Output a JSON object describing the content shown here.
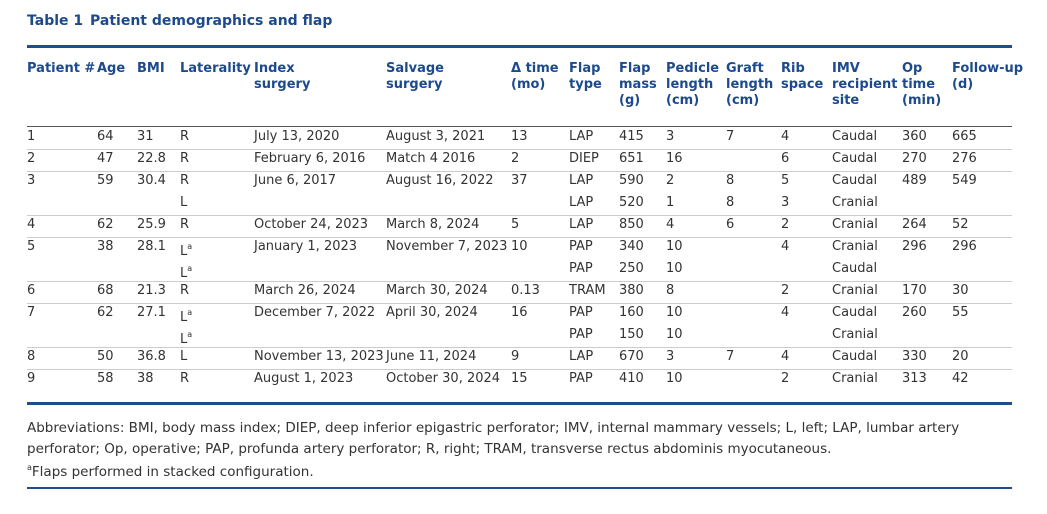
{
  "header": {
    "label": "Table 1",
    "title": "Patient demographics and flap"
  },
  "table": {
    "columns": [
      [
        "Patient #"
      ],
      [
        "Age"
      ],
      [
        "BMI"
      ],
      [
        "Laterality"
      ],
      [
        "Index",
        "surgery"
      ],
      [
        "Salvage",
        "surgery"
      ],
      [
        "Δ time",
        "(mo)"
      ],
      [
        "Flap",
        "type"
      ],
      [
        "Flap",
        "mass",
        "(g)"
      ],
      [
        "Pedicle",
        "length",
        "(cm)"
      ],
      [
        "Graft",
        "length",
        "(cm)"
      ],
      [
        "Rib",
        "space"
      ],
      [
        "IMV",
        "recipient",
        "site"
      ],
      [
        "Op",
        "time",
        "(min)"
      ],
      [
        "Follow-up",
        "(d)"
      ]
    ],
    "rows": [
      [
        "1",
        "64",
        "31",
        "R",
        "July 13, 2020",
        "August 3, 2021",
        "13",
        "LAP",
        "415",
        "3",
        "7",
        "4",
        "Caudal",
        "360",
        "665"
      ],
      [
        "2",
        "47",
        "22.8",
        "R",
        "February 6, 2016",
        "Match 4 2016",
        "2",
        "DIEP",
        "651",
        "16",
        null,
        "6",
        "Caudal",
        "270",
        "276"
      ],
      [
        "3",
        "59",
        "30.4",
        "R",
        "June 6, 2017",
        "August 16, 2022",
        "37",
        "LAP",
        "590",
        "2",
        "8",
        "5",
        "Caudal",
        "489",
        "549"
      ],
      [
        null,
        null,
        null,
        "L",
        null,
        null,
        null,
        "LAP",
        "520",
        "1",
        "8",
        "3",
        "Cranial",
        null,
        null
      ],
      [
        "4",
        "62",
        "25.9",
        "R",
        "October 24, 2023",
        "March 8, 2024",
        "5",
        "LAP",
        "850",
        "4",
        "6",
        "2",
        "Cranial",
        "264",
        "52"
      ],
      [
        "5",
        "38",
        "28.1",
        {
          "text": "L",
          "sup": "a"
        },
        "January 1, 2023",
        "November 7, 2023",
        "10",
        "PAP",
        "340",
        "10",
        null,
        "4",
        "Cranial",
        "296",
        "296"
      ],
      [
        null,
        null,
        null,
        {
          "text": "L",
          "sup": "a"
        },
        null,
        null,
        null,
        "PAP",
        "250",
        "10",
        null,
        null,
        "Caudal",
        null,
        null
      ],
      [
        "6",
        "68",
        "21.3",
        "R",
        "March 26, 2024",
        "March 30, 2024",
        "0.13",
        "TRAM",
        "380",
        "8",
        null,
        "2",
        "Cranial",
        "170",
        "30"
      ],
      [
        "7",
        "62",
        "27.1",
        {
          "text": "L",
          "sup": "a"
        },
        "December 7, 2022",
        "April 30, 2024",
        "16",
        "PAP",
        "160",
        "10",
        null,
        "4",
        "Caudal",
        "260",
        "55"
      ],
      [
        null,
        null,
        null,
        {
          "text": "L",
          "sup": "a"
        },
        null,
        null,
        null,
        "PAP",
        "150",
        "10",
        null,
        null,
        "Cranial",
        null,
        null
      ],
      [
        "8",
        "50",
        "36.8",
        "L",
        "November 13, 2023",
        "June 11, 2024",
        "9",
        "LAP",
        "670",
        "3",
        "7",
        "4",
        "Caudal",
        "330",
        "20"
      ],
      [
        "9",
        "58",
        "38",
        "R",
        "August 1, 2023",
        "October 30, 2024",
        "15",
        "PAP",
        "410",
        "10",
        null,
        "2",
        "Cranial",
        "313",
        "42"
      ]
    ]
  },
  "footer": {
    "abbreviations": "Abbreviations: BMI, body mass index; DIEP, deep inferior epigastric perforator; IMV, internal mammary vessels; L, left; LAP, lumbar artery perforator; Op, operative; PAP, profunda artery perforator; R, right; TRAM, transverse rectus abdominis myocutaneous.",
    "note": {
      "marker": "a",
      "text": "Flaps performed in stacked configuration."
    }
  }
}
